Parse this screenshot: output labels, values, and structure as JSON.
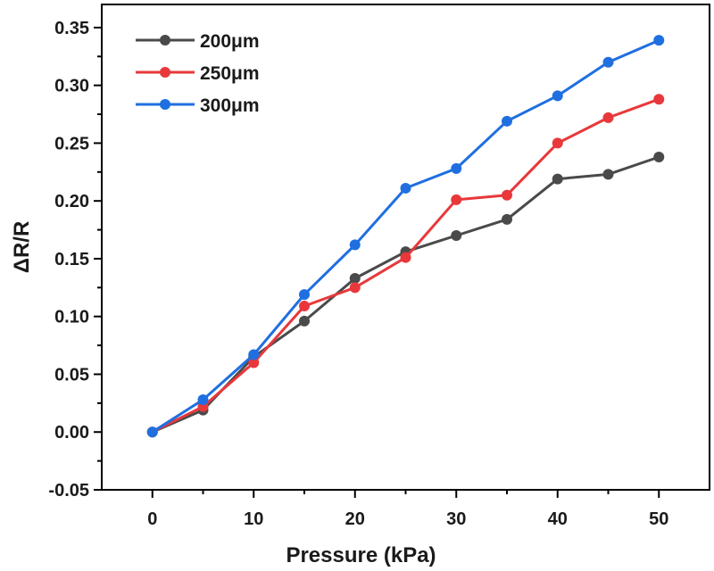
{
  "chart_data": {
    "type": "line",
    "title": "",
    "xlabel": "Pressure (kPa)",
    "ylabel": "ΔR/R",
    "x": [
      0,
      5,
      10,
      15,
      20,
      25,
      30,
      35,
      40,
      45,
      50
    ],
    "xlim": [
      -5,
      55
    ],
    "ylim": [
      -0.05,
      0.37
    ],
    "xticks": [
      0,
      10,
      20,
      30,
      40,
      50
    ],
    "xtick_labels": [
      "0",
      "10",
      "20",
      "30",
      "40",
      "50"
    ],
    "yticks": [
      -0.05,
      0.0,
      0.05,
      0.1,
      0.15,
      0.2,
      0.25,
      0.3,
      0.35
    ],
    "ytick_labels": [
      "-0.05",
      "0.00",
      "0.05",
      "0.10",
      "0.15",
      "0.20",
      "0.25",
      "0.30",
      "0.35"
    ],
    "grid": false,
    "legend_position": "top-left",
    "series": [
      {
        "name": "200μm",
        "color": "#4a4a4a",
        "values": [
          0.0,
          0.019,
          0.065,
          0.096,
          0.133,
          0.156,
          0.17,
          0.184,
          0.219,
          0.223,
          0.238
        ]
      },
      {
        "name": "250μm",
        "color": "#e8383b",
        "values": [
          0.0,
          0.022,
          0.06,
          0.109,
          0.125,
          0.151,
          0.201,
          0.205,
          0.25,
          0.272,
          0.288
        ]
      },
      {
        "name": "300μm",
        "color": "#1f6fe0",
        "values": [
          0.0,
          0.028,
          0.067,
          0.119,
          0.162,
          0.211,
          0.228,
          0.269,
          0.291,
          0.32,
          0.339
        ]
      }
    ]
  }
}
